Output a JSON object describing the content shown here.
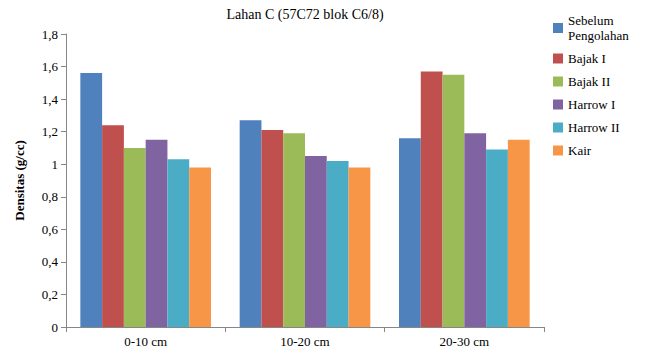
{
  "chart_data": {
    "type": "bar",
    "title": "Lahan C (57C72 blok C6/8)",
    "y_label": "Densitas (g/cc)",
    "categories": [
      "0-10 cm",
      "10-20 cm",
      "20-30 cm"
    ],
    "series": [
      {
        "name": "Sebelum Pengolahan",
        "color": "#4f81bd",
        "values": [
          1.56,
          1.27,
          1.16
        ]
      },
      {
        "name": "Bajak I",
        "color": "#c0504d",
        "values": [
          1.24,
          1.21,
          1.57
        ]
      },
      {
        "name": "Bajak II",
        "color": "#9bbb59",
        "values": [
          1.1,
          1.19,
          1.55
        ]
      },
      {
        "name": "Harrow I",
        "color": "#8064a2",
        "values": [
          1.15,
          1.05,
          1.19
        ]
      },
      {
        "name": "Harrow II",
        "color": "#4bacc6",
        "values": [
          1.03,
          1.02,
          1.09
        ]
      },
      {
        "name": "Kair",
        "color": "#f79646",
        "values": [
          0.98,
          0.98,
          1.15
        ]
      }
    ],
    "ylim": [
      0,
      1.8
    ],
    "yticks": [
      0,
      {
        "value": 0.2,
        "label": "0,2"
      },
      {
        "value": 0.4,
        "label": "0,4"
      },
      {
        "value": 0.6,
        "label": "0,6"
      },
      {
        "value": 0.8,
        "label": "0,8"
      },
      1,
      {
        "value": 1.2,
        "label": "1,2"
      },
      {
        "value": 1.4,
        "label": "1,4"
      },
      {
        "value": 1.6,
        "label": "1,6"
      },
      {
        "value": 1.8,
        "label": "1,8"
      }
    ],
    "grid": false,
    "legend": "right"
  }
}
